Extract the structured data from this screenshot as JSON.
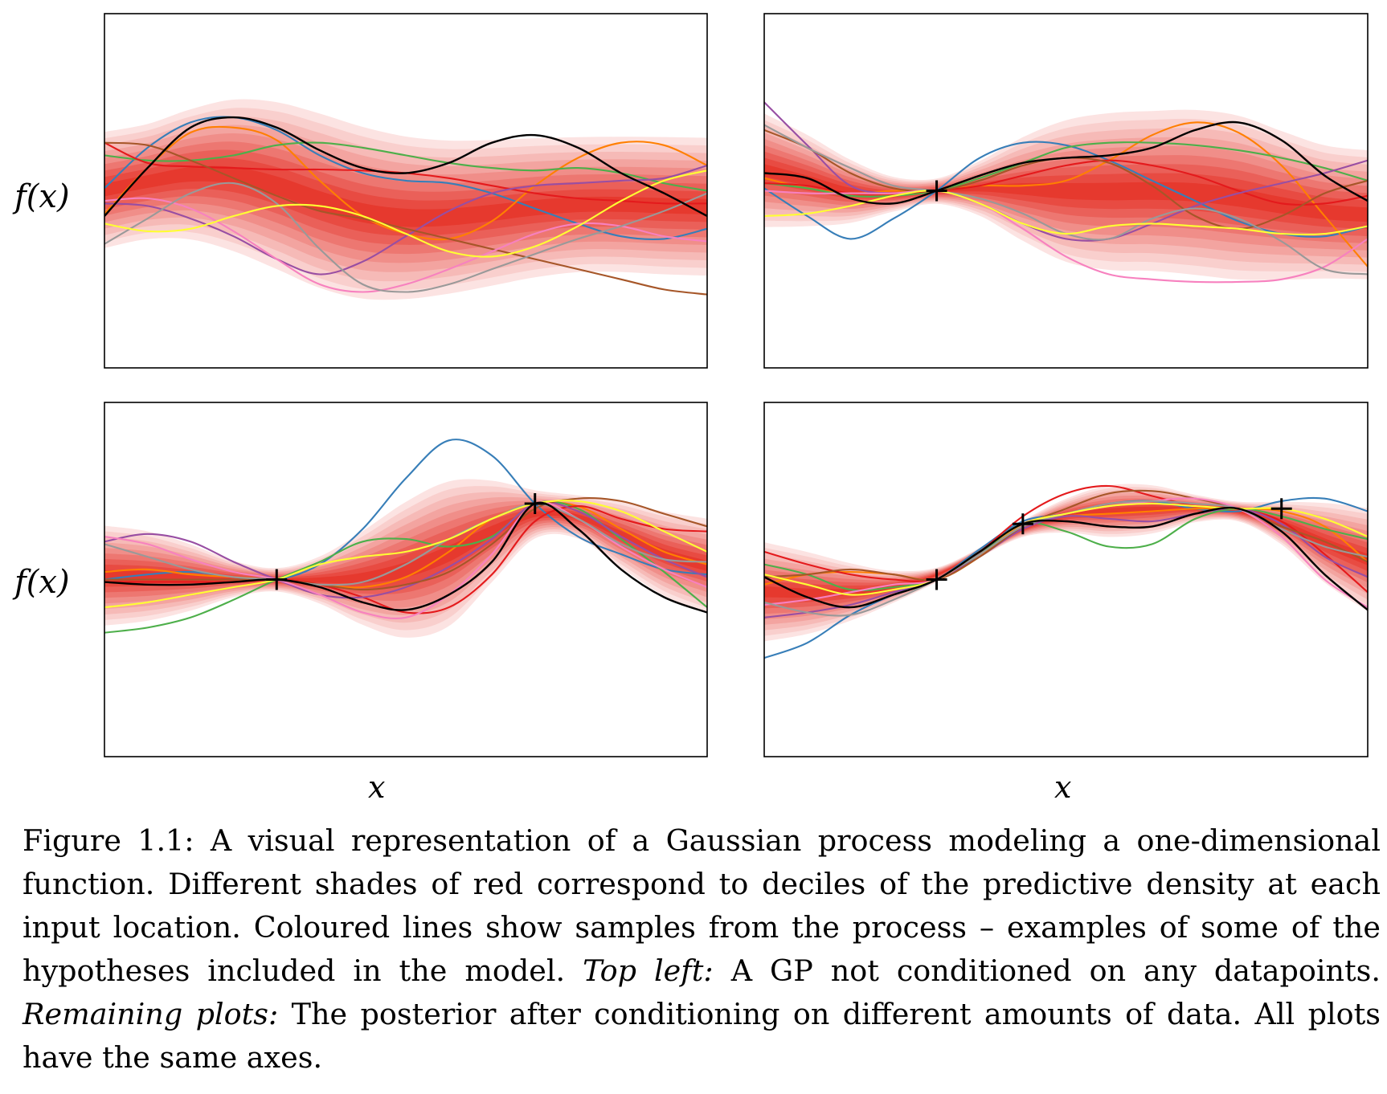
{
  "chart_data": [
    {
      "type": "line",
      "panel": "top-left",
      "ylabel": "f(x)",
      "xlabel": "",
      "band_levels": 10,
      "band_ranges": [
        [
          0.06,
          2.95
        ]
      ],
      "series": [
        {
          "color": "#377eb8",
          "y": [
            0.05,
            0.85,
            1.35,
            1.45,
            1.2,
            0.7,
            0.35,
            0.2,
            0.15,
            -0.05,
            -0.35,
            -0.65,
            -0.9,
            -0.95,
            -0.75
          ]
        },
        {
          "color": "#ff7f00",
          "y": [
            -0.45,
            0.45,
            1.15,
            1.25,
            1.0,
            0.2,
            -0.5,
            -0.85,
            -0.95,
            -0.6,
            0.1,
            0.65,
            0.95,
            0.9,
            0.5
          ]
        },
        {
          "color": "#4daf4a",
          "y": [
            0.7,
            0.6,
            0.6,
            0.7,
            0.9,
            0.95,
            0.85,
            0.7,
            0.55,
            0.45,
            0.4,
            0.45,
            0.35,
            0.15,
            0.0
          ]
        },
        {
          "color": "#e41a1c",
          "y": [
            0.95,
            0.55,
            0.48,
            0.45,
            0.42,
            0.42,
            0.4,
            0.35,
            0.25,
            0.1,
            -0.05,
            -0.15,
            -0.2,
            -0.25,
            -0.25
          ]
        },
        {
          "color": "#984ea3",
          "y": [
            -0.25,
            -0.3,
            -0.55,
            -0.9,
            -1.35,
            -1.65,
            -1.4,
            -0.9,
            -0.4,
            -0.05,
            0.1,
            0.15,
            0.2,
            0.25,
            0.5
          ]
        },
        {
          "color": "#a65628",
          "y": [
            0.95,
            0.9,
            0.6,
            0.25,
            -0.1,
            -0.4,
            -0.55,
            -0.75,
            -0.95,
            -1.15,
            -1.35,
            -1.55,
            -1.75,
            -1.95,
            -2.05
          ]
        },
        {
          "color": "#f781bf",
          "y": [
            -0.2,
            -0.15,
            -0.35,
            -0.8,
            -1.35,
            -1.85,
            -2.0,
            -1.85,
            -1.55,
            -1.2,
            -0.85,
            -0.65,
            -0.7,
            -0.9,
            -1.0
          ]
        },
        {
          "color": "#999999",
          "y": [
            -1.05,
            -0.55,
            -0.05,
            0.15,
            -0.25,
            -1.15,
            -1.85,
            -2.0,
            -1.85,
            -1.55,
            -1.25,
            -0.95,
            -0.7,
            -0.4,
            -0.05
          ]
        },
        {
          "color": "#ffff33",
          "y": [
            -0.65,
            -0.8,
            -0.75,
            -0.5,
            -0.3,
            -0.3,
            -0.5,
            -0.85,
            -1.2,
            -1.3,
            -1.1,
            -0.7,
            -0.2,
            0.2,
            0.4
          ]
        },
        {
          "color": "#000000",
          "y": [
            -0.5,
            0.45,
            1.25,
            1.45,
            1.25,
            0.8,
            0.45,
            0.35,
            0.55,
            0.95,
            1.1,
            0.85,
            0.35,
            -0.05,
            -0.5
          ]
        }
      ],
      "observations": []
    },
    {
      "type": "line",
      "panel": "top-right",
      "ylabel": "",
      "xlabel": "",
      "band_levels": 10,
      "band_ranges": [
        [
          0.06,
          2.95
        ]
      ],
      "series": [
        {
          "color": "#377eb8",
          "y": [
            0.05,
            -0.5,
            -0.95,
            -0.55,
            0.0,
            0.65,
            0.95,
            0.9,
            0.6,
            0.2,
            -0.2,
            -0.6,
            -0.85,
            -0.9,
            -0.7
          ]
        },
        {
          "color": "#ff7f00",
          "y": [
            0.25,
            0.05,
            -0.05,
            0.0,
            0.0,
            0.1,
            0.1,
            0.2,
            0.6,
            1.1,
            1.35,
            1.15,
            0.5,
            -0.5,
            -1.5
          ]
        },
        {
          "color": "#4daf4a",
          "y": [
            0.15,
            0.05,
            -0.1,
            -0.1,
            0.0,
            0.25,
            0.55,
            0.85,
            0.95,
            0.95,
            0.9,
            0.8,
            0.65,
            0.45,
            0.2
          ]
        },
        {
          "color": "#e41a1c",
          "y": [
            0.15,
            0.1,
            -0.05,
            -0.05,
            0.0,
            0.1,
            0.3,
            0.5,
            0.6,
            0.5,
            0.3,
            0.0,
            -0.25,
            -0.25,
            -0.1
          ]
        },
        {
          "color": "#984ea3",
          "y": [
            1.75,
            0.9,
            0.1,
            -0.05,
            0.0,
            -0.25,
            -0.65,
            -0.95,
            -0.95,
            -0.65,
            -0.3,
            -0.05,
            0.15,
            0.35,
            0.6
          ]
        },
        {
          "color": "#a65628",
          "y": [
            1.2,
            0.85,
            0.35,
            0.05,
            0.0,
            0.2,
            0.5,
            0.65,
            0.55,
            0.1,
            -0.5,
            -0.75,
            -0.5,
            -0.05,
            0.2
          ]
        },
        {
          "color": "#f781bf",
          "y": [
            0.0,
            -0.05,
            -0.05,
            -0.05,
            0.0,
            -0.25,
            -0.75,
            -1.3,
            -1.65,
            -1.75,
            -1.8,
            -1.8,
            -1.75,
            -1.5,
            -0.95
          ]
        },
        {
          "color": "#999999",
          "y": [
            1.3,
            0.85,
            0.45,
            0.1,
            0.0,
            -0.15,
            -0.45,
            -0.85,
            -0.95,
            -0.55,
            -0.35,
            -0.55,
            -1.0,
            -1.55,
            -1.65
          ]
        },
        {
          "color": "#ffff33",
          "y": [
            -0.5,
            -0.45,
            -0.3,
            -0.1,
            0.0,
            -0.25,
            -0.65,
            -0.85,
            -0.7,
            -0.65,
            -0.7,
            -0.75,
            -0.85,
            -0.85,
            -0.7
          ]
        },
        {
          "color": "#000000",
          "y": [
            0.35,
            0.25,
            -0.15,
            -0.25,
            0.0,
            0.3,
            0.55,
            0.65,
            0.7,
            0.85,
            1.2,
            1.35,
            1.0,
            0.3,
            -0.2
          ]
        }
      ],
      "observations": [
        {
          "x": 4,
          "y": 0.0
        }
      ]
    },
    {
      "type": "line",
      "panel": "bottom-left",
      "ylabel": "f(x)",
      "xlabel": "x",
      "band_levels": 10,
      "band_ranges": [
        [
          0.06,
          2.95
        ]
      ],
      "series": [
        {
          "color": "#377eb8",
          "y": [
            0.0,
            0.1,
            0.15,
            0.05,
            0.0,
            0.3,
            1.0,
            2.0,
            2.75,
            2.45,
            1.5,
            0.85,
            0.5,
            0.2,
            0.1
          ]
        },
        {
          "color": "#ff7f00",
          "y": [
            0.15,
            0.2,
            0.1,
            0.05,
            0.0,
            -0.1,
            -0.15,
            0.05,
            0.55,
            1.2,
            1.5,
            1.45,
            1.0,
            0.55,
            0.3
          ]
        },
        {
          "color": "#4daf4a",
          "y": [
            -1.05,
            -0.95,
            -0.75,
            -0.4,
            0.0,
            0.35,
            0.75,
            0.8,
            0.65,
            0.85,
            1.5,
            1.4,
            0.8,
            0.15,
            -0.55
          ]
        },
        {
          "color": "#e41a1c",
          "y": [
            -0.05,
            -0.05,
            -0.05,
            -0.05,
            0.0,
            -0.1,
            -0.35,
            -0.65,
            -0.55,
            0.1,
            1.15,
            1.45,
            1.2,
            1.0,
            0.95
          ]
        },
        {
          "color": "#984ea3",
          "y": [
            0.75,
            0.9,
            0.75,
            0.35,
            0.0,
            -0.3,
            -0.35,
            -0.15,
            0.25,
            0.8,
            1.5,
            1.35,
            0.85,
            0.4,
            0.05
          ]
        },
        {
          "color": "#a65628",
          "y": [
            0.0,
            0.0,
            0.0,
            0.0,
            0.0,
            -0.1,
            -0.2,
            -0.1,
            0.15,
            0.7,
            1.4,
            1.6,
            1.55,
            1.3,
            1.05
          ]
        },
        {
          "color": "#f781bf",
          "y": [
            0.85,
            0.7,
            0.4,
            0.15,
            0.0,
            -0.3,
            -0.65,
            -0.75,
            -0.3,
            0.5,
            1.5,
            1.2,
            0.65,
            0.2,
            -0.15
          ]
        },
        {
          "color": "#999999",
          "y": [
            0.7,
            0.45,
            0.2,
            0.05,
            0.0,
            -0.1,
            -0.05,
            0.3,
            0.8,
            1.2,
            1.5,
            1.2,
            0.7,
            0.4,
            0.35
          ]
        },
        {
          "color": "#ffff33",
          "y": [
            -0.55,
            -0.45,
            -0.3,
            -0.15,
            0.0,
            0.3,
            0.45,
            0.55,
            0.8,
            1.2,
            1.5,
            1.55,
            1.35,
            0.95,
            0.55
          ]
        },
        {
          "color": "#000000",
          "y": [
            -0.05,
            -0.1,
            -0.1,
            -0.05,
            0.0,
            -0.15,
            -0.45,
            -0.6,
            -0.3,
            0.35,
            1.5,
            1.0,
            0.2,
            -0.35,
            -0.65
          ]
        }
      ],
      "observations": [
        {
          "x": 4,
          "y": 0.0
        },
        {
          "x": 10,
          "y": 1.5
        }
      ]
    },
    {
      "type": "line",
      "panel": "bottom-right",
      "ylabel": "",
      "xlabel": "x",
      "band_levels": 10,
      "band_ranges": [
        [
          0.06,
          2.95
        ]
      ],
      "series": [
        {
          "color": "#377eb8",
          "y": [
            -1.55,
            -1.25,
            -0.7,
            -0.3,
            0.0,
            0.6,
            1.15,
            1.3,
            1.5,
            1.55,
            1.4,
            1.35,
            1.55,
            1.6,
            1.35
          ]
        },
        {
          "color": "#ff7f00",
          "y": [
            -0.1,
            0.1,
            0.15,
            0.1,
            0.0,
            0.45,
            1.1,
            1.25,
            1.3,
            1.35,
            1.4,
            1.4,
            1.35,
            1.05,
            0.35
          ]
        },
        {
          "color": "#4daf4a",
          "y": [
            0.3,
            0.1,
            -0.2,
            -0.15,
            0.0,
            0.5,
            1.1,
            0.95,
            0.65,
            0.7,
            1.2,
            1.4,
            1.25,
            1.0,
            0.8
          ]
        },
        {
          "color": "#e41a1c",
          "y": [
            0.55,
            0.3,
            0.1,
            0.0,
            0.0,
            0.55,
            1.25,
            1.7,
            1.85,
            1.65,
            1.45,
            1.4,
            1.15,
            0.5,
            -0.25
          ]
        },
        {
          "color": "#984ea3",
          "y": [
            -0.75,
            -0.65,
            -0.5,
            -0.25,
            0.0,
            0.45,
            1.0,
            1.25,
            1.2,
            1.15,
            1.3,
            1.4,
            1.1,
            0.45,
            0.05
          ]
        },
        {
          "color": "#a65628",
          "y": [
            0.05,
            0.1,
            0.2,
            0.1,
            0.0,
            0.45,
            1.05,
            1.4,
            1.7,
            1.75,
            1.6,
            1.4,
            1.05,
            0.75,
            0.35
          ]
        },
        {
          "color": "#f781bf",
          "y": [
            -0.5,
            -0.4,
            -0.25,
            -0.1,
            0.0,
            0.55,
            1.1,
            1.3,
            1.45,
            1.55,
            1.6,
            1.4,
            0.85,
            0.0,
            -0.55
          ]
        },
        {
          "color": "#999999",
          "y": [
            -0.45,
            -0.65,
            -0.7,
            -0.4,
            0.0,
            0.5,
            1.05,
            1.3,
            1.5,
            1.55,
            1.5,
            1.4,
            1.0,
            0.65,
            0.45
          ]
        },
        {
          "color": "#ffff33",
          "y": [
            0.1,
            -0.1,
            -0.3,
            -0.2,
            0.0,
            0.55,
            1.1,
            1.3,
            1.45,
            1.5,
            1.45,
            1.4,
            1.4,
            1.2,
            0.85
          ]
        },
        {
          "color": "#000000",
          "y": [
            0.05,
            -0.35,
            -0.55,
            -0.3,
            0.0,
            0.55,
            1.1,
            1.15,
            1.05,
            1.05,
            1.3,
            1.4,
            0.95,
            0.1,
            -0.6
          ]
        }
      ],
      "observations": [
        {
          "x": 4,
          "y": 0.0
        },
        {
          "x": 6,
          "y": 1.1
        },
        {
          "x": 12,
          "y": 1.4
        }
      ]
    }
  ],
  "labels": {
    "ylabel_top": "f(x)",
    "ylabel_bottom": "f(x)",
    "xlabel_left": "x",
    "xlabel_right": "x"
  },
  "caption": {
    "lead": "Figure 1.1: A visual representation of a Gaussian process modeling a one-dimensional function. Different shades of red correspond to deciles of the predictive density at each input location. Coloured lines show samples from the process – examples of some of the hypotheses included in the model.",
    "label_1": "Top left:",
    "text_1": "A GP not conditioned on any datapoints.",
    "label_2": "Remaining plots:",
    "text_2": "The posterior after conditioning on different amounts of data. All plots have the same axes."
  }
}
